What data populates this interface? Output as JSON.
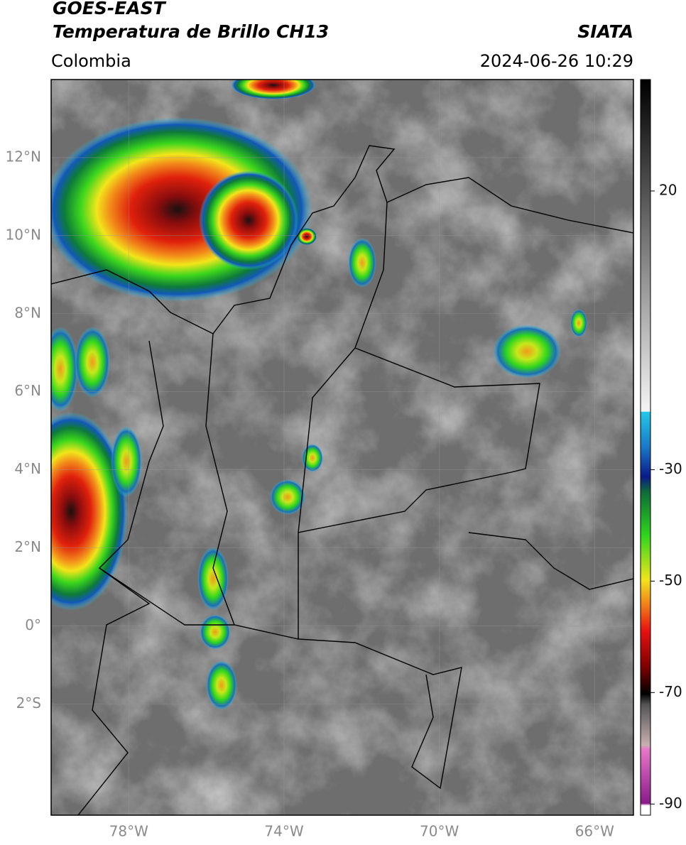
{
  "header": {
    "satellite": "GOES-EAST",
    "product": "Temperatura de Brillo CH13",
    "source": "SIATA",
    "region": "Colombia",
    "datetime": "2024-06-26 10:29"
  },
  "map": {
    "lonlim": [
      -80,
      -65
    ],
    "latlim": [
      -4.85,
      14
    ],
    "lat_ticks": [
      {
        "value": 12,
        "label": "12°N"
      },
      {
        "value": 10,
        "label": "10°N"
      },
      {
        "value": 8,
        "label": "8°N"
      },
      {
        "value": 6,
        "label": "6°N"
      },
      {
        "value": 4,
        "label": "4°N"
      },
      {
        "value": 2,
        "label": "2°N"
      },
      {
        "value": 0,
        "label": "0°"
      },
      {
        "value": -2,
        "label": "2°S"
      }
    ],
    "lon_ticks": [
      {
        "value": -78,
        "label": "78°W"
      },
      {
        "value": -74,
        "label": "74°W"
      },
      {
        "value": -70,
        "label": "70°W"
      },
      {
        "value": -66,
        "label": "66°W"
      }
    ]
  },
  "colorbar": {
    "lim": [
      -92,
      40
    ],
    "ticks": [
      20,
      -30,
      -50,
      -70,
      -90
    ]
  }
}
